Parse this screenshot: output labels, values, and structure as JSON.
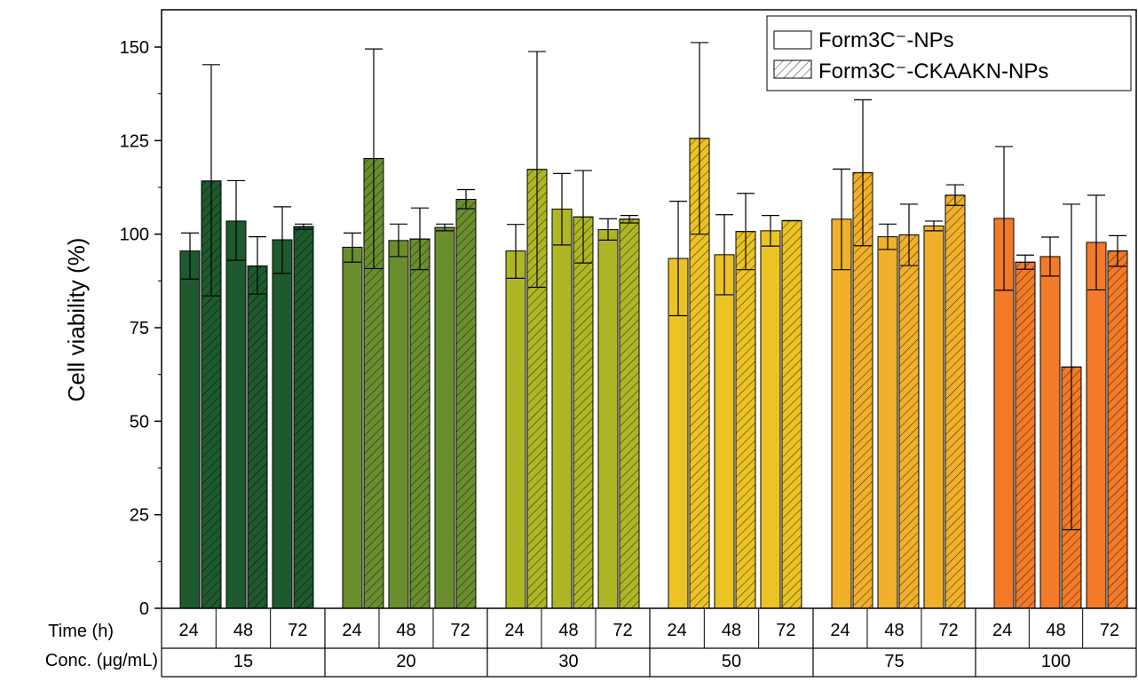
{
  "chart_data": {
    "type": "bar",
    "ylabel": "Cell viability (%)",
    "ylim": [
      0,
      160
    ],
    "yticks": [
      0,
      25,
      50,
      75,
      100,
      125,
      150
    ],
    "row_labels": {
      "time": "Time (h)",
      "conc": "Conc. (μg/mL)"
    },
    "times": [
      "24",
      "48",
      "72"
    ],
    "legend": {
      "position": "top-right",
      "entries": [
        "Form3C⁻-NPs",
        "Form3C⁻-CKAAKN-NPs"
      ]
    },
    "series_styles": [
      "solid",
      "hatched"
    ],
    "groups": [
      {
        "conc": "15",
        "color": "#1e5a2e",
        "bars": [
          {
            "mean": 95.5,
            "err_low": 88,
            "err_high": 100.3
          },
          {
            "mean": 114.2,
            "err_low": 83.5,
            "err_high": 145.3
          },
          {
            "mean": 103.5,
            "err_low": 93,
            "err_high": 114.3
          },
          {
            "mean": 91.5,
            "err_low": 84,
            "err_high": 99.3
          },
          {
            "mean": 98.5,
            "err_low": 89.5,
            "err_high": 107.3
          },
          {
            "mean": 102.0,
            "err_low": 101.3,
            "err_high": 102.7
          }
        ]
      },
      {
        "conc": "20",
        "color": "#6a8e2e",
        "bars": [
          {
            "mean": 96.5,
            "err_low": 92.5,
            "err_high": 100.3
          },
          {
            "mean": 120.2,
            "err_low": 90.8,
            "err_high": 149.5
          },
          {
            "mean": 98.3,
            "err_low": 94,
            "err_high": 102.7
          },
          {
            "mean": 98.7,
            "err_low": 90.5,
            "err_high": 107
          },
          {
            "mean": 101.8,
            "err_low": 100.9,
            "err_high": 102.7
          },
          {
            "mean": 109.3,
            "err_low": 106.8,
            "err_high": 111.9
          }
        ]
      },
      {
        "conc": "30",
        "color": "#afb626",
        "bars": [
          {
            "mean": 95.5,
            "err_low": 88.2,
            "err_high": 102.6
          },
          {
            "mean": 117.3,
            "err_low": 85.8,
            "err_high": 148.8
          },
          {
            "mean": 106.7,
            "err_low": 97.1,
            "err_high": 116.2
          },
          {
            "mean": 104.6,
            "err_low": 92.3,
            "err_high": 117.0
          },
          {
            "mean": 101.2,
            "err_low": 98.4,
            "err_high": 104.1
          },
          {
            "mean": 104.0,
            "err_low": 103.0,
            "err_high": 105.0
          }
        ]
      },
      {
        "conc": "50",
        "color": "#ebc324",
        "bars": [
          {
            "mean": 93.5,
            "err_low": 78.2,
            "err_high": 108.8
          },
          {
            "mean": 125.6,
            "err_low": 100.0,
            "err_high": 151.2
          },
          {
            "mean": 94.5,
            "err_low": 83.8,
            "err_high": 105.2
          },
          {
            "mean": 100.7,
            "err_low": 90.5,
            "err_high": 110.9
          },
          {
            "mean": 100.9,
            "err_low": 96.8,
            "err_high": 105.0
          },
          {
            "mean": 103.6,
            "err_low": 103.6,
            "err_high": 103.6
          }
        ]
      },
      {
        "conc": "75",
        "color": "#f0b02c",
        "bars": [
          {
            "mean": 104.0,
            "err_low": 90.5,
            "err_high": 117.4
          },
          {
            "mean": 116.4,
            "err_low": 96.9,
            "err_high": 135.9
          },
          {
            "mean": 99.3,
            "err_low": 95.9,
            "err_high": 102.7
          },
          {
            "mean": 99.8,
            "err_low": 91.6,
            "err_high": 108.0
          },
          {
            "mean": 102.2,
            "err_low": 100.9,
            "err_high": 103.5
          },
          {
            "mean": 110.4,
            "err_low": 107.7,
            "err_high": 113.2
          }
        ]
      },
      {
        "conc": "100",
        "color": "#f27a28",
        "bars": [
          {
            "mean": 104.2,
            "err_low": 85.0,
            "err_high": 123.4
          },
          {
            "mean": 92.5,
            "err_low": 90.6,
            "err_high": 94.4
          },
          {
            "mean": 94.0,
            "err_low": 88.8,
            "err_high": 99.2
          },
          {
            "mean": 64.5,
            "err_low": 21.0,
            "err_high": 108.0
          },
          {
            "mean": 97.8,
            "err_low": 85.1,
            "err_high": 110.4
          },
          {
            "mean": 95.5,
            "err_low": 91.4,
            "err_high": 99.6
          }
        ]
      }
    ]
  }
}
